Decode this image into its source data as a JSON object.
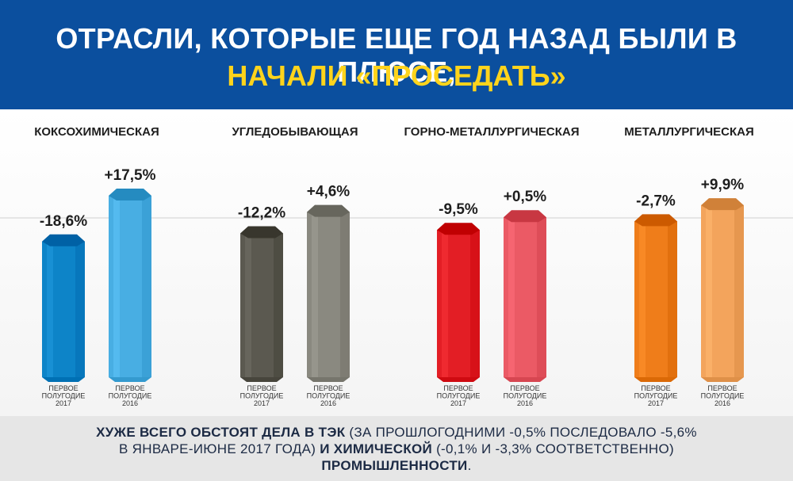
{
  "header": {
    "title_line1": "ОТРАСЛИ, КОТОРЫЕ ЕЩЕ ГОД НАЗАД БЫЛИ В ПЛЮСЕ,",
    "title_line2": "НАЧАЛИ «ПРОСЕДАТЬ»"
  },
  "chart_data": {
    "type": "bar",
    "zero_line": true,
    "categories": [
      "КОКСОХИМИЧЕСКАЯ",
      "УГЛЕДОБЫВАЮЩАЯ",
      "ГОРНО-МЕТАЛЛУРГИЧЕСКАЯ",
      "МЕТАЛЛУРГИЧЕСКАЯ"
    ],
    "series": [
      {
        "name": "ПЕРВОЕ ПОЛУГОДИЕ 2017",
        "values": [
          -18.6,
          -12.2,
          -9.5,
          -2.7
        ],
        "labels": [
          "-18,6%",
          "-12,2%",
          "-9,5%",
          "-2,7%"
        ],
        "colors": [
          "#0d84c8",
          "#5b5950",
          "#e31e25",
          "#ef7d1a"
        ]
      },
      {
        "name": "ПЕРВОЕ ПОЛУГОДИЕ 2016",
        "values": [
          17.5,
          4.6,
          0.5,
          9.9
        ],
        "labels": [
          "+17,5%",
          "+4,6%",
          "+0,5%",
          "+9,9%"
        ],
        "colors": [
          "#48aee3",
          "#8a8980",
          "#eb5a65",
          "#f3a45c"
        ]
      }
    ],
    "bar_caption_line1": "ПЕРВОЕ",
    "bar_caption_line2": "ПОЛУГОДИЕ",
    "years": [
      "2017",
      "2016"
    ]
  },
  "footer": {
    "part1_bold": "ХУЖЕ ВСЕГО ОБСТОЯТ ДЕЛА В ТЭК",
    "part2": " (ЗА ПРОШЛОГОДНИМИ -0,5% ПОСЛЕДОВАЛО -5,6%",
    "part3": "В ЯНВАРЕ-ИЮНЕ 2017 ГОДА) ",
    "part4_bold": "И ХИМИЧЕСКОЙ",
    "part5": " (-0,1% И -3,3% СООТВЕТСТВЕННО)",
    "part6_bold": "ПРОМЫШЛЕННОСТИ",
    "part7": "."
  }
}
